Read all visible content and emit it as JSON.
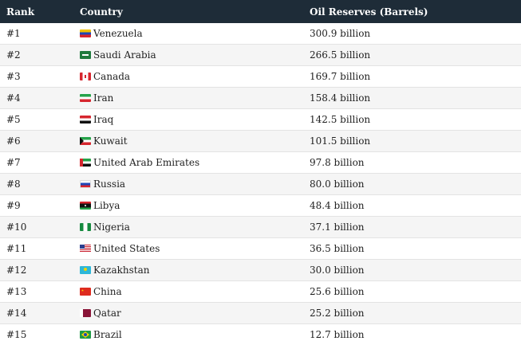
{
  "header": {
    "rank": "Rank",
    "country": "Country",
    "oil": "Oil Reserves (Barrels)"
  },
  "rows": [
    {
      "rank": "#1",
      "country": "Venezuela",
      "flag": "venezuela",
      "reserves": "300.9 billion"
    },
    {
      "rank": "#2",
      "country": "Saudi Arabia",
      "flag": "saudi",
      "reserves": "266.5 billion"
    },
    {
      "rank": "#3",
      "country": "Canada",
      "flag": "canada",
      "reserves": "169.7 billion"
    },
    {
      "rank": "#4",
      "country": "Iran",
      "flag": "iran",
      "reserves": "158.4 billion"
    },
    {
      "rank": "#5",
      "country": "Iraq",
      "flag": "iraq",
      "reserves": "142.5 billion"
    },
    {
      "rank": "#6",
      "country": "Kuwait",
      "flag": "kuwait",
      "reserves": "101.5 billion"
    },
    {
      "rank": "#7",
      "country": "United Arab Emirates",
      "flag": "uae",
      "reserves": "97.8 billion"
    },
    {
      "rank": "#8",
      "country": "Russia",
      "flag": "russia",
      "reserves": "80.0 billion"
    },
    {
      "rank": "#9",
      "country": "Libya",
      "flag": "libya",
      "reserves": "48.4 billion"
    },
    {
      "rank": "#10",
      "country": "Nigeria",
      "flag": "nigeria",
      "reserves": "37.1 billion"
    },
    {
      "rank": "#11",
      "country": "United States",
      "flag": "usa",
      "reserves": "36.5 billion"
    },
    {
      "rank": "#12",
      "country": "Kazakhstan",
      "flag": "kazakhstan",
      "reserves": "30.0 billion"
    },
    {
      "rank": "#13",
      "country": "China",
      "flag": "china",
      "reserves": "25.6 billion"
    },
    {
      "rank": "#14",
      "country": "Qatar",
      "flag": "qatar",
      "reserves": "25.2 billion"
    },
    {
      "rank": "#15",
      "country": "Brazil",
      "flag": "brazil",
      "reserves": "12.7 billion"
    }
  ]
}
